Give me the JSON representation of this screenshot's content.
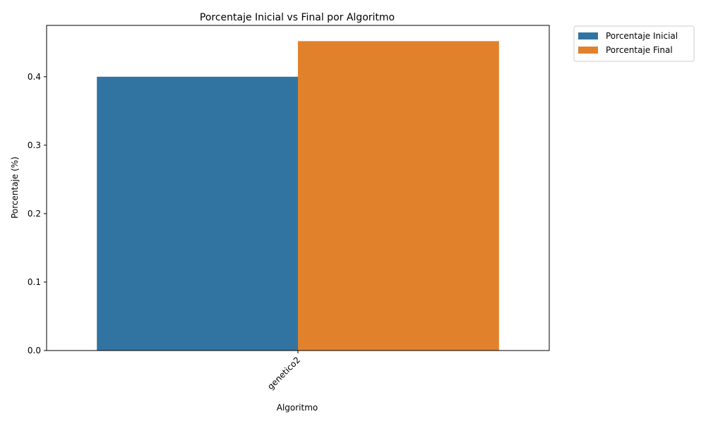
{
  "chart_data": {
    "type": "bar",
    "title": "Porcentaje Inicial vs Final por Algoritmo",
    "xlabel": "Algoritmo",
    "ylabel": "Porcentaje (%)",
    "categories": [
      "genetico2"
    ],
    "series": [
      {
        "name": "Porcentaje Inicial",
        "values": [
          0.4
        ],
        "color": "#3274a1"
      },
      {
        "name": "Porcentaje Final",
        "values": [
          0.452
        ],
        "color": "#e1812c"
      }
    ],
    "ylim": [
      0,
      0.475
    ],
    "yticks": [
      "0.0",
      "0.1",
      "0.2",
      "0.3",
      "0.4"
    ],
    "ytick_values": [
      0,
      0.1,
      0.2,
      0.3,
      0.4
    ],
    "grid": false,
    "legend_position": "outside top-right",
    "xtick_rotation": "45"
  }
}
